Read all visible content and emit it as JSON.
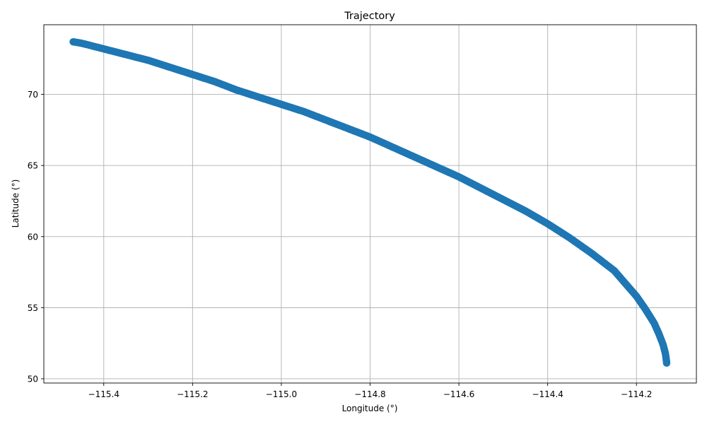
{
  "chart_data": {
    "type": "scatter",
    "title": "Trajectory",
    "xlabel": "Longitude (°)",
    "ylabel": "Latitude (°)",
    "xlim": [
      -115.535,
      -114.065
    ],
    "ylim": [
      49.7,
      74.9
    ],
    "grid": true,
    "marker_color": "#1f77b4",
    "x_ticks": [
      -115.4,
      -115.2,
      -115.0,
      -114.8,
      -114.6,
      -114.4,
      -114.2
    ],
    "x_tick_labels": [
      "−115.4",
      "−115.2",
      "−115.0",
      "−114.8",
      "−114.6",
      "−114.4",
      "−114.2"
    ],
    "y_ticks": [
      50,
      55,
      60,
      65,
      70
    ],
    "y_tick_labels": [
      "50",
      "55",
      "60",
      "65",
      "70"
    ],
    "series": [
      {
        "x": [
          -115.469,
          -115.45,
          -115.4,
          -115.35,
          -115.3,
          -115.25,
          -115.2,
          -115.15,
          -115.1,
          -115.05,
          -115.0,
          -114.95,
          -114.9,
          -114.85,
          -114.8,
          -114.75,
          -114.7,
          -114.65,
          -114.6,
          -114.55,
          -114.5,
          -114.45,
          -114.4,
          -114.35,
          -114.3,
          -114.25,
          -114.2,
          -114.18,
          -114.16,
          -114.15,
          -114.14,
          -114.135,
          -114.133,
          -114.132
        ],
        "y": [
          73.7,
          73.6,
          73.2,
          72.8,
          72.4,
          71.9,
          71.4,
          70.9,
          70.3,
          69.8,
          69.3,
          68.8,
          68.2,
          67.6,
          67.0,
          66.3,
          65.6,
          64.9,
          64.2,
          63.4,
          62.6,
          61.8,
          60.9,
          59.9,
          58.8,
          57.6,
          55.8,
          54.9,
          53.9,
          53.2,
          52.4,
          51.8,
          51.4,
          51.1
        ]
      }
    ]
  }
}
